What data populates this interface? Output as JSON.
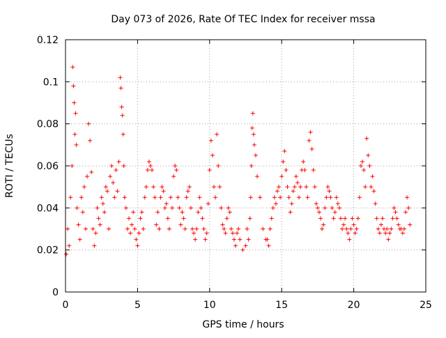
{
  "chart_data": {
    "type": "scatter",
    "title": "Day 073 of 2026, Rate Of TEC Index for receiver mssa",
    "xlabel": "GPS time / hours",
    "ylabel": "ROTI / TECUs",
    "xlim": [
      0,
      25
    ],
    "ylim": [
      0,
      0.12
    ],
    "x_ticks": [
      0,
      5,
      10,
      15,
      20,
      25
    ],
    "x_tick_labels": [
      "0",
      "5",
      "10",
      "15",
      "20",
      "25"
    ],
    "y_ticks": [
      0,
      0.02,
      0.04,
      0.06,
      0.08,
      0.1,
      0.12
    ],
    "y_tick_labels": [
      "0",
      "0.02",
      "0.04",
      "0.06",
      "0.08",
      "0.1",
      "0.12"
    ],
    "grid": true,
    "marker": "+",
    "series": [
      {
        "name": "ROTI",
        "color": "#ff0000",
        "x": [
          0.05,
          0.15,
          0.25,
          0.35,
          0.45,
          0.5,
          0.55,
          0.6,
          0.65,
          0.7,
          0.75,
          0.8,
          0.9,
          1.0,
          1.1,
          1.2,
          1.3,
          1.4,
          1.5,
          1.6,
          1.7,
          1.8,
          1.9,
          2.0,
          2.1,
          2.2,
          2.3,
          2.4,
          2.5,
          2.6,
          2.7,
          2.8,
          2.9,
          3.0,
          3.1,
          3.2,
          3.3,
          3.4,
          3.5,
          3.6,
          3.7,
          3.8,
          3.85,
          3.9,
          3.95,
          4.0,
          4.05,
          4.1,
          4.2,
          4.3,
          4.4,
          4.5,
          4.6,
          4.7,
          4.8,
          4.9,
          5.0,
          5.1,
          5.2,
          5.3,
          5.4,
          5.5,
          5.6,
          5.7,
          5.8,
          5.9,
          6.0,
          6.1,
          6.2,
          6.3,
          6.4,
          6.5,
          6.6,
          6.7,
          6.8,
          6.9,
          7.0,
          7.1,
          7.2,
          7.3,
          7.4,
          7.5,
          7.6,
          7.7,
          7.8,
          7.9,
          8.0,
          8.1,
          8.2,
          8.3,
          8.4,
          8.5,
          8.6,
          8.7,
          8.8,
          8.9,
          9.0,
          9.1,
          9.2,
          9.3,
          9.4,
          9.5,
          9.6,
          9.7,
          9.8,
          9.9,
          10.0,
          10.1,
          10.2,
          10.3,
          10.4,
          10.5,
          10.6,
          10.7,
          10.8,
          10.9,
          11.0,
          11.1,
          11.2,
          11.3,
          11.4,
          11.5,
          11.6,
          11.7,
          11.8,
          11.9,
          12.0,
          12.1,
          12.3,
          12.5,
          12.6,
          12.7,
          12.8,
          12.85,
          12.9,
          12.95,
          13.0,
          13.05,
          13.1,
          13.2,
          13.3,
          13.5,
          13.7,
          13.9,
          14.0,
          14.1,
          14.2,
          14.3,
          14.4,
          14.5,
          14.6,
          14.7,
          14.8,
          14.9,
          15.0,
          15.1,
          15.2,
          15.3,
          15.4,
          15.5,
          15.6,
          15.7,
          15.8,
          15.9,
          16.0,
          16.1,
          16.2,
          16.3,
          16.4,
          16.5,
          16.6,
          16.7,
          16.8,
          16.9,
          17.0,
          17.1,
          17.2,
          17.3,
          17.4,
          17.5,
          17.6,
          17.7,
          17.8,
          17.9,
          18.0,
          18.1,
          18.2,
          18.3,
          18.4,
          18.5,
          18.6,
          18.7,
          18.8,
          18.9,
          19.0,
          19.1,
          19.2,
          19.3,
          19.4,
          19.5,
          19.6,
          19.7,
          19.8,
          19.9,
          20.0,
          20.1,
          20.2,
          20.3,
          20.4,
          20.5,
          20.6,
          20.7,
          20.8,
          20.9,
          21.0,
          21.1,
          21.2,
          21.3,
          21.4,
          21.5,
          21.6,
          21.7,
          21.8,
          21.9,
          22.0,
          22.1,
          22.2,
          22.3,
          22.4,
          22.5,
          22.6,
          22.7,
          22.8,
          22.9,
          23.0,
          23.1,
          23.2,
          23.3,
          23.4,
          23.5,
          23.6,
          23.7,
          23.8,
          23.9
        ],
        "y": [
          0.018,
          0.03,
          0.022,
          0.045,
          0.06,
          0.107,
          0.098,
          0.09,
          0.075,
          0.085,
          0.07,
          0.04,
          0.032,
          0.025,
          0.045,
          0.038,
          0.05,
          0.03,
          0.055,
          0.08,
          0.072,
          0.057,
          0.03,
          0.022,
          0.028,
          0.04,
          0.035,
          0.032,
          0.045,
          0.042,
          0.038,
          0.05,
          0.048,
          0.03,
          0.055,
          0.06,
          0.052,
          0.045,
          0.058,
          0.048,
          0.062,
          0.102,
          0.097,
          0.088,
          0.084,
          0.075,
          0.06,
          0.045,
          0.04,
          0.03,
          0.035,
          0.028,
          0.032,
          0.038,
          0.03,
          0.025,
          0.022,
          0.028,
          0.035,
          0.038,
          0.03,
          0.045,
          0.05,
          0.058,
          0.062,
          0.06,
          0.058,
          0.05,
          0.045,
          0.032,
          0.038,
          0.03,
          0.045,
          0.05,
          0.048,
          0.04,
          0.042,
          0.035,
          0.03,
          0.045,
          0.04,
          0.055,
          0.06,
          0.058,
          0.045,
          0.04,
          0.032,
          0.038,
          0.035,
          0.03,
          0.045,
          0.048,
          0.05,
          0.04,
          0.03,
          0.028,
          0.025,
          0.03,
          0.038,
          0.045,
          0.04,
          0.035,
          0.03,
          0.025,
          0.028,
          0.042,
          0.058,
          0.072,
          0.065,
          0.05,
          0.045,
          0.075,
          0.06,
          0.05,
          0.04,
          0.032,
          0.03,
          0.028,
          0.035,
          0.04,
          0.038,
          0.03,
          0.028,
          0.025,
          0.022,
          0.028,
          0.03,
          0.025,
          0.02,
          0.022,
          0.03,
          0.025,
          0.035,
          0.045,
          0.06,
          0.078,
          0.085,
          0.075,
          0.07,
          0.065,
          0.055,
          0.045,
          0.03,
          0.025,
          0.025,
          0.022,
          0.03,
          0.035,
          0.04,
          0.045,
          0.042,
          0.048,
          0.05,
          0.045,
          0.055,
          0.062,
          0.067,
          0.058,
          0.05,
          0.045,
          0.038,
          0.042,
          0.048,
          0.05,
          0.055,
          0.052,
          0.045,
          0.05,
          0.058,
          0.062,
          0.058,
          0.05,
          0.045,
          0.072,
          0.076,
          0.068,
          0.058,
          0.05,
          0.042,
          0.04,
          0.038,
          0.035,
          0.03,
          0.032,
          0.04,
          0.045,
          0.05,
          0.048,
          0.045,
          0.04,
          0.035,
          0.038,
          0.045,
          0.042,
          0.04,
          0.035,
          0.03,
          0.032,
          0.035,
          0.03,
          0.028,
          0.025,
          0.03,
          0.035,
          0.032,
          0.028,
          0.03,
          0.035,
          0.045,
          0.06,
          0.062,
          0.058,
          0.05,
          0.073,
          0.065,
          0.06,
          0.05,
          0.055,
          0.048,
          0.042,
          0.035,
          0.03,
          0.028,
          0.032,
          0.035,
          0.03,
          0.028,
          0.03,
          0.025,
          0.028,
          0.03,
          0.035,
          0.04,
          0.038,
          0.035,
          0.032,
          0.03,
          0.03,
          0.028,
          0.03,
          0.038,
          0.045,
          0.04,
          0.032
        ]
      }
    ]
  }
}
